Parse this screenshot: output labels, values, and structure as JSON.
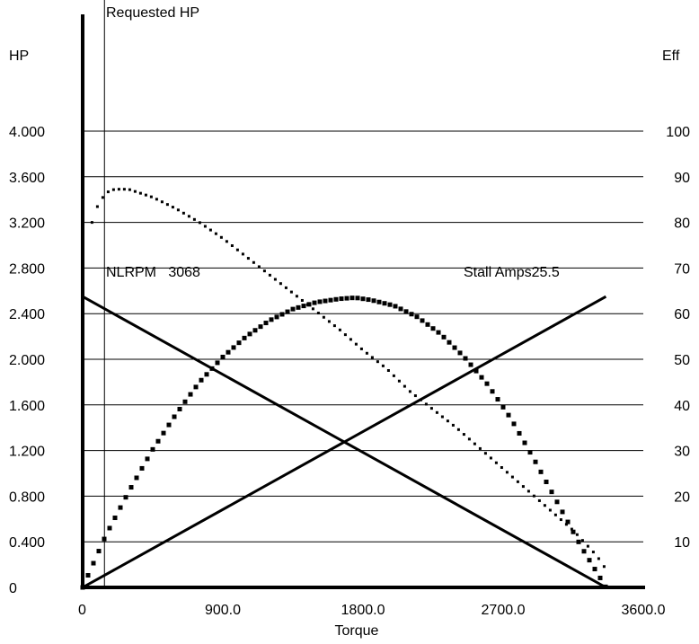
{
  "chart_data": {
    "type": "line",
    "title": "",
    "xlabel": "Torque",
    "ylabel_left": "HP",
    "ylabel_right": "Eff",
    "xlim": [
      0,
      3600
    ],
    "ylim_left": [
      0,
      4.0
    ],
    "ylim_right": [
      0,
      100
    ],
    "x_ticks": [
      "0",
      "900.0",
      "1800.0",
      "2700.0",
      "3600.0"
    ],
    "y_ticks_left": [
      "0",
      "0.400",
      "0.800",
      "1.200",
      "1.600",
      "2.000",
      "2.400",
      "2.800",
      "3.200",
      "3.600",
      "4.000"
    ],
    "y_ticks_right": [
      "10",
      "20",
      "30",
      "40",
      "50",
      "60",
      "70",
      "80",
      "90",
      "100"
    ],
    "grid": true,
    "annotations": {
      "requested_hp": "Requested HP",
      "nlrpm": "NLRPM   3068",
      "stall_amps": "Stall Amps25.5"
    },
    "requested_hp_torque": 140,
    "series": [
      {
        "style": "line",
        "axis": "left",
        "x": [
          0,
          3360
        ],
        "y": [
          2.55,
          0
        ]
      },
      {
        "style": "line",
        "axis": "left",
        "x": [
          0,
          3360
        ],
        "y": [
          0,
          2.55
        ]
      },
      {
        "style": "large-dots",
        "axis": "left",
        "x": [
          0,
          150,
          300,
          450,
          600,
          750,
          900,
          1050,
          1200,
          1350,
          1500,
          1650,
          1750,
          1850,
          2000,
          2150,
          2300,
          2450,
          2600,
          2750,
          2900,
          3050,
          3200,
          3360
        ],
        "y": [
          0,
          0.46,
          0.85,
          1.21,
          1.52,
          1.8,
          2.02,
          2.2,
          2.34,
          2.44,
          2.5,
          2.53,
          2.54,
          2.52,
          2.47,
          2.37,
          2.22,
          2.02,
          1.78,
          1.48,
          1.12,
          0.74,
          0.36,
          0
        ]
      },
      {
        "style": "small-dots",
        "axis": "right",
        "x": [
          60,
          100,
          150,
          200,
          250,
          300,
          450,
          600,
          750,
          900,
          1050,
          1200,
          1350,
          1500,
          1650,
          1800,
          1950,
          2100,
          2250,
          2400,
          2550,
          2700,
          2850,
          3000,
          3150,
          3300,
          3360
        ],
        "y": [
          80,
          84,
          86.5,
          87.2,
          87.3,
          87.2,
          85.5,
          83,
          80,
          76.5,
          72.5,
          68.5,
          64.5,
          60.5,
          56.5,
          52,
          48,
          43,
          39,
          35,
          30.5,
          26,
          21.5,
          17,
          12.5,
          7,
          4
        ]
      }
    ]
  }
}
